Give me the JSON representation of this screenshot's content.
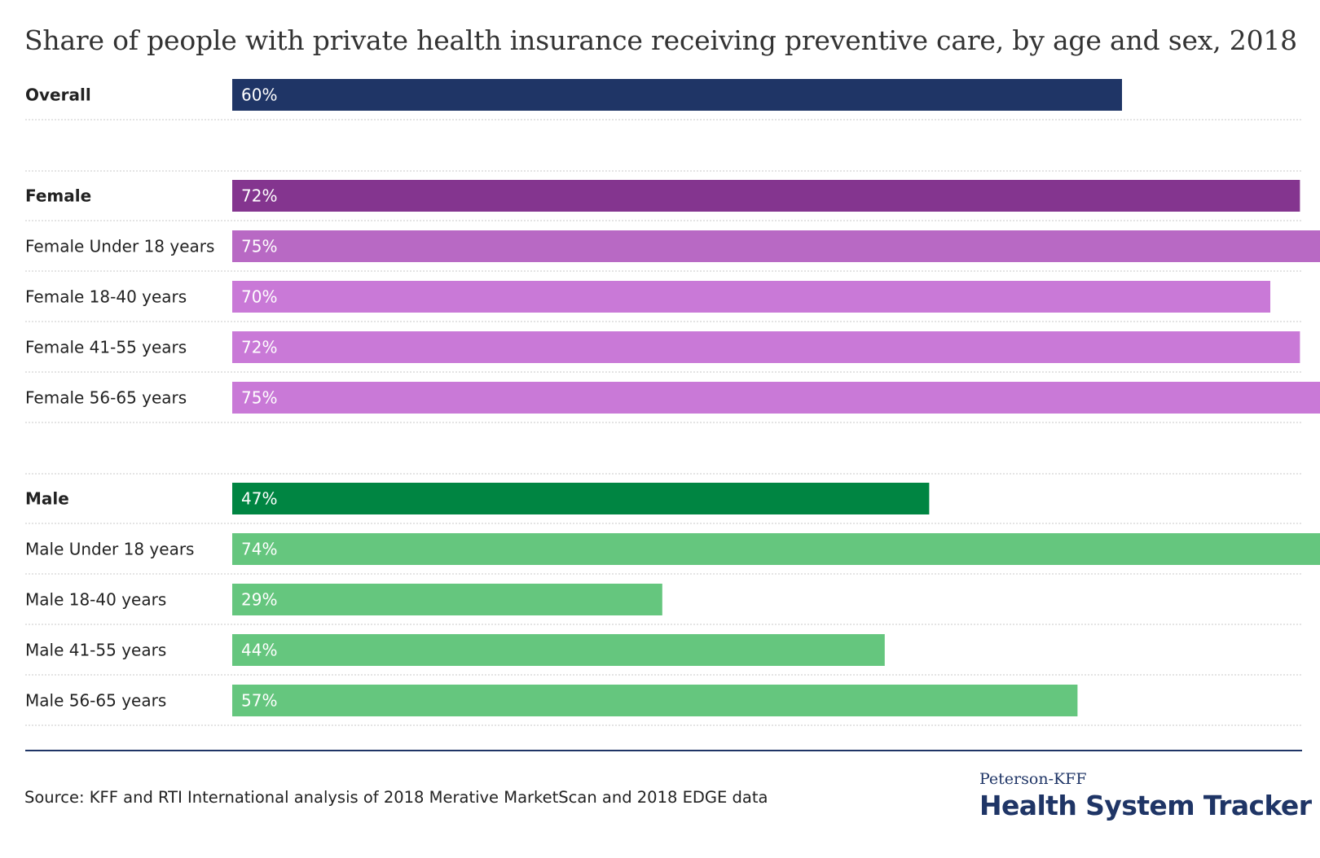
{
  "chart_data": {
    "type": "bar",
    "orientation": "horizontal",
    "title": "Share of people with private health insurance receiving preventive care, by age and sex, 2018",
    "xlim": [
      0,
      100
    ],
    "grid": false,
    "legend": "none",
    "groups": [
      {
        "rows": [
          {
            "label": "Overall",
            "value": 60,
            "value_label": "60%",
            "bold": true,
            "color": "#1f3566"
          }
        ]
      },
      {
        "rows": [
          {
            "label": "Female",
            "value": 72,
            "value_label": "72%",
            "bold": true,
            "color": "#84358f"
          },
          {
            "label": "Female Under 18 years",
            "value": 75,
            "value_label": "75%",
            "bold": false,
            "color": "#b869c4"
          },
          {
            "label": "Female 18-40 years",
            "value": 70,
            "value_label": "70%",
            "bold": false,
            "color": "#c979d7"
          },
          {
            "label": "Female 41-55 years",
            "value": 72,
            "value_label": "72%",
            "bold": false,
            "color": "#c979d7"
          },
          {
            "label": "Female 56-65 years",
            "value": 75,
            "value_label": "75%",
            "bold": false,
            "color": "#c979d7"
          }
        ]
      },
      {
        "rows": [
          {
            "label": "Male",
            "value": 47,
            "value_label": "47%",
            "bold": true,
            "color": "#008542"
          },
          {
            "label": "Male Under 18 years",
            "value": 74,
            "value_label": "74%",
            "bold": false,
            "color": "#65c67e"
          },
          {
            "label": "Male 18-40 years",
            "value": 29,
            "value_label": "29%",
            "bold": false,
            "color": "#65c67e"
          },
          {
            "label": "Male 41-55 years",
            "value": 44,
            "value_label": "44%",
            "bold": false,
            "color": "#65c67e"
          },
          {
            "label": "Male 56-65 years",
            "value": 57,
            "value_label": "57%",
            "bold": false,
            "color": "#65c67e"
          }
        ]
      }
    ]
  },
  "footer": {
    "source": "Source: KFF and RTI International analysis of 2018 Merative MarketScan and 2018 EDGE data",
    "logo_line1": "Peterson-KFF",
    "logo_line2": "Health System Tracker"
  }
}
